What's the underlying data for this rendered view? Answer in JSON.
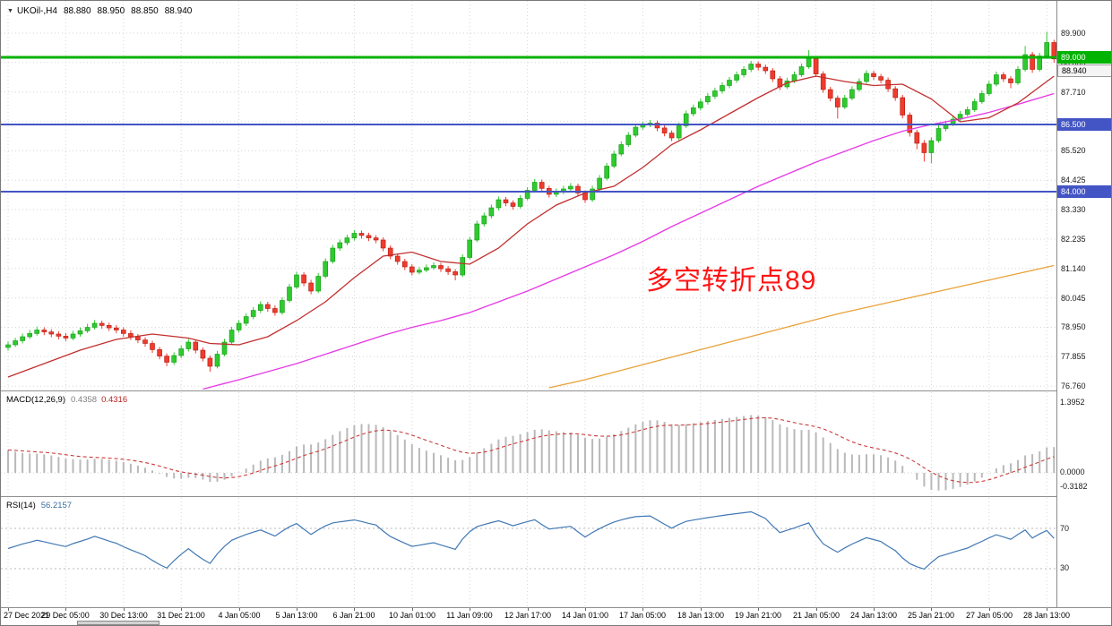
{
  "header": {
    "collapse_icon": "▼",
    "symbol": "UKOil-,H4",
    "open": "88.880",
    "high": "88.950",
    "low": "88.850",
    "close": "88.940"
  },
  "annotation": {
    "text": "多空转折点89",
    "color": "#ff1414"
  },
  "price_axis": {
    "labels": [
      "89.900",
      "88.805",
      "87.710",
      "86.615",
      "85.520",
      "84.425",
      "83.330",
      "82.235",
      "81.140",
      "80.045",
      "78.950",
      "77.855",
      "76.760"
    ],
    "bid": "88.940"
  },
  "date_axis": {
    "labels": [
      "27 Dec 2021",
      "29 Dec 05:00",
      "30 Dec 13:00",
      "31 Dec 21:00",
      "4 Jan 05:00",
      "5 Jan 13:00",
      "6 Jan 21:00",
      "10 Jan 01:00",
      "11 Jan 09:00",
      "12 Jan 17:00",
      "14 Jan 01:00",
      "17 Jan 05:00",
      "18 Jan 13:00",
      "19 Jan 21:00",
      "21 Jan 05:00",
      "24 Jan 13:00",
      "25 Jan 21:00",
      "27 Jan 05:00",
      "28 Jan 13:00"
    ]
  },
  "macd": {
    "label": "MACD(12,26,9)",
    "value1": "0.4358",
    "value2": "0.4316",
    "axis": [
      "1.3952",
      "0.0000",
      "-0.3182"
    ],
    "params": {
      "fast": 12,
      "slow": 26,
      "signal": 9
    }
  },
  "rsi": {
    "label": "RSI(14)",
    "value": "56.2157",
    "levels": [
      70,
      30
    ],
    "period": 14
  },
  "colors": {
    "grid": "#d6d6d6",
    "candle_up": "#2fca2f",
    "candle_up_border": "#119911",
    "candle_down": "#ef3c2e",
    "candle_down_border": "#b3170c",
    "ma_fast": "#c22f2f",
    "ma_mid": "#e63ce6",
    "ma_slow": "#e8a33b",
    "macd_hist": "#b9b9b9",
    "macd_signal": "#cc3b3b",
    "rsi_line": "#4178b4",
    "axis_text": "#1a1a1a"
  },
  "chart_data": {
    "type": "candlestick",
    "symbol": "UKOil-",
    "timeframe": "H4",
    "visible_price_range": [
      76.6,
      91.0
    ],
    "current_ohlc": {
      "open": 88.88,
      "high": 88.95,
      "low": 88.85,
      "close": 88.94
    },
    "hlines": [
      {
        "price": 89.0,
        "label": "89.000",
        "color": "#00b300",
        "width": 3
      },
      {
        "price": 86.5,
        "label": "86.500",
        "color": "#4355c4",
        "width": 2
      },
      {
        "price": 84.0,
        "label": "84.000",
        "color": "#4355c4",
        "width": 2
      }
    ],
    "bars": [
      [
        78.2,
        78.42,
        78.08,
        78.3
      ],
      [
        78.3,
        78.56,
        78.22,
        78.45
      ],
      [
        78.45,
        78.72,
        78.35,
        78.6
      ],
      [
        78.6,
        78.85,
        78.52,
        78.72
      ],
      [
        78.72,
        78.98,
        78.64,
        78.85
      ],
      [
        78.85,
        78.95,
        78.66,
        78.78
      ],
      [
        78.78,
        78.88,
        78.58,
        78.7
      ],
      [
        78.7,
        78.8,
        78.5,
        78.62
      ],
      [
        78.62,
        78.74,
        78.44,
        78.55
      ],
      [
        78.55,
        78.82,
        78.47,
        78.7
      ],
      [
        78.7,
        78.94,
        78.6,
        78.82
      ],
      [
        78.82,
        79.08,
        78.74,
        78.95
      ],
      [
        78.95,
        79.22,
        78.87,
        79.1
      ],
      [
        79.1,
        79.2,
        78.9,
        79.02
      ],
      [
        79.02,
        79.12,
        78.81,
        78.93
      ],
      [
        78.93,
        79.03,
        78.73,
        78.85
      ],
      [
        78.85,
        78.95,
        78.6,
        78.72
      ],
      [
        78.72,
        78.84,
        78.48,
        78.6
      ],
      [
        78.6,
        78.7,
        78.36,
        78.48
      ],
      [
        78.48,
        78.58,
        78.23,
        78.35
      ],
      [
        78.35,
        78.45,
        78.0,
        78.12
      ],
      [
        78.12,
        78.22,
        77.76,
        77.88
      ],
      [
        77.88,
        77.98,
        77.5,
        77.65
      ],
      [
        77.65,
        78.02,
        77.55,
        77.9
      ],
      [
        77.9,
        78.27,
        77.8,
        78.15
      ],
      [
        78.15,
        78.52,
        78.05,
        78.4
      ],
      [
        78.4,
        78.5,
        77.98,
        78.1
      ],
      [
        78.1,
        78.2,
        77.68,
        77.8
      ],
      [
        77.8,
        77.9,
        77.3,
        77.5
      ],
      [
        77.5,
        78.07,
        77.42,
        77.95
      ],
      [
        77.95,
        78.52,
        77.87,
        78.4
      ],
      [
        78.4,
        78.97,
        78.32,
        78.85
      ],
      [
        78.85,
        79.22,
        78.75,
        79.1
      ],
      [
        79.1,
        79.47,
        79.0,
        79.35
      ],
      [
        79.35,
        79.7,
        79.25,
        79.58
      ],
      [
        79.58,
        79.92,
        79.48,
        79.8
      ],
      [
        79.8,
        79.9,
        79.53,
        79.65
      ],
      [
        79.65,
        79.77,
        79.38,
        79.5
      ],
      [
        79.5,
        80.07,
        79.42,
        79.95
      ],
      [
        79.95,
        80.57,
        79.87,
        80.45
      ],
      [
        80.45,
        81.02,
        80.37,
        80.9
      ],
      [
        80.9,
        81.0,
        80.48,
        80.6
      ],
      [
        80.6,
        80.72,
        80.18,
        80.3
      ],
      [
        80.3,
        80.97,
        80.22,
        80.85
      ],
      [
        80.85,
        81.52,
        80.77,
        81.4
      ],
      [
        81.4,
        82.02,
        81.32,
        81.9
      ],
      [
        81.9,
        82.22,
        81.8,
        82.1
      ],
      [
        82.1,
        82.4,
        82.0,
        82.28
      ],
      [
        82.28,
        82.57,
        82.18,
        82.45
      ],
      [
        82.45,
        82.55,
        82.25,
        82.37
      ],
      [
        82.37,
        82.47,
        82.16,
        82.28
      ],
      [
        82.28,
        82.38,
        82.08,
        82.2
      ],
      [
        82.2,
        82.3,
        81.78,
        81.9
      ],
      [
        81.9,
        82.0,
        81.48,
        81.6
      ],
      [
        81.6,
        81.7,
        81.28,
        81.4
      ],
      [
        81.4,
        81.5,
        81.08,
        81.2
      ],
      [
        81.2,
        81.3,
        80.88,
        81.0
      ],
      [
        81.0,
        81.2,
        80.92,
        81.08
      ],
      [
        81.08,
        81.29,
        81.0,
        81.17
      ],
      [
        81.17,
        81.37,
        81.09,
        81.25
      ],
      [
        81.25,
        81.35,
        81.01,
        81.13
      ],
      [
        81.13,
        81.23,
        80.9,
        81.02
      ],
      [
        81.02,
        81.12,
        80.7,
        80.9
      ],
      [
        80.9,
        81.67,
        80.82,
        81.55
      ],
      [
        81.55,
        82.32,
        81.47,
        82.2
      ],
      [
        82.2,
        82.92,
        82.12,
        82.8
      ],
      [
        82.8,
        83.22,
        82.7,
        83.1
      ],
      [
        83.1,
        83.52,
        83.0,
        83.4
      ],
      [
        83.4,
        83.82,
        83.3,
        83.7
      ],
      [
        83.7,
        83.8,
        83.46,
        83.58
      ],
      [
        83.58,
        83.68,
        83.33,
        83.45
      ],
      [
        83.45,
        83.87,
        83.37,
        83.75
      ],
      [
        83.75,
        84.17,
        83.67,
        84.05
      ],
      [
        84.05,
        84.47,
        83.97,
        84.35
      ],
      [
        84.35,
        84.45,
        84.0,
        84.12
      ],
      [
        84.12,
        84.22,
        83.78,
        83.9
      ],
      [
        83.9,
        84.12,
        83.8,
        84.0
      ],
      [
        84.0,
        84.22,
        83.9,
        84.1
      ],
      [
        84.1,
        84.32,
        84.0,
        84.2
      ],
      [
        84.2,
        84.3,
        83.83,
        83.95
      ],
      [
        83.95,
        84.05,
        83.58,
        83.7
      ],
      [
        83.7,
        84.22,
        83.62,
        84.1
      ],
      [
        84.1,
        84.62,
        84.02,
        84.5
      ],
      [
        84.5,
        85.07,
        84.42,
        84.95
      ],
      [
        84.95,
        85.52,
        84.87,
        85.4
      ],
      [
        85.4,
        85.87,
        85.32,
        85.75
      ],
      [
        85.75,
        86.22,
        85.67,
        86.1
      ],
      [
        86.1,
        86.52,
        86.02,
        86.4
      ],
      [
        86.4,
        86.6,
        86.3,
        86.48
      ],
      [
        86.48,
        86.67,
        86.4,
        86.55
      ],
      [
        86.55,
        86.65,
        86.25,
        86.37
      ],
      [
        86.37,
        86.47,
        86.06,
        86.18
      ],
      [
        86.18,
        86.28,
        85.88,
        86.0
      ],
      [
        86.0,
        86.57,
        85.92,
        86.45
      ],
      [
        86.45,
        87.02,
        86.37,
        86.9
      ],
      [
        86.9,
        87.24,
        86.8,
        87.12
      ],
      [
        87.12,
        87.46,
        87.02,
        87.34
      ],
      [
        87.34,
        87.67,
        87.24,
        87.55
      ],
      [
        87.55,
        87.87,
        87.45,
        87.75
      ],
      [
        87.75,
        88.07,
        87.65,
        87.95
      ],
      [
        87.95,
        88.27,
        87.85,
        88.15
      ],
      [
        88.15,
        88.47,
        88.05,
        88.35
      ],
      [
        88.35,
        88.67,
        88.25,
        88.55
      ],
      [
        88.55,
        88.87,
        88.45,
        88.75
      ],
      [
        88.75,
        88.85,
        88.51,
        88.63
      ],
      [
        88.63,
        88.73,
        88.38,
        88.5
      ],
      [
        88.5,
        88.6,
        88.08,
        88.2
      ],
      [
        88.2,
        88.3,
        87.78,
        87.9
      ],
      [
        87.9,
        88.24,
        87.82,
        88.12
      ],
      [
        88.12,
        88.47,
        88.04,
        88.35
      ],
      [
        88.35,
        88.77,
        88.27,
        88.65
      ],
      [
        88.65,
        89.27,
        88.57,
        88.95
      ],
      [
        88.95,
        89.05,
        88.26,
        88.38
      ],
      [
        88.38,
        88.48,
        87.68,
        87.8
      ],
      [
        87.8,
        87.9,
        87.36,
        87.48
      ],
      [
        87.48,
        87.58,
        86.72,
        87.15
      ],
      [
        87.15,
        87.6,
        87.07,
        87.48
      ],
      [
        87.48,
        87.92,
        87.4,
        87.8
      ],
      [
        87.8,
        88.22,
        87.72,
        88.1
      ],
      [
        88.1,
        88.52,
        88.02,
        88.4
      ],
      [
        88.4,
        88.5,
        88.16,
        88.28
      ],
      [
        88.28,
        88.38,
        88.03,
        88.15
      ],
      [
        88.15,
        88.25,
        87.71,
        87.83
      ],
      [
        87.83,
        87.93,
        87.38,
        87.5
      ],
      [
        87.5,
        87.6,
        86.73,
        86.85
      ],
      [
        86.85,
        86.95,
        86.05,
        86.2
      ],
      [
        86.2,
        86.3,
        85.58,
        85.8
      ],
      [
        85.8,
        85.92,
        85.12,
        85.45
      ],
      [
        85.45,
        86.02,
        85.05,
        85.9
      ],
      [
        85.9,
        86.47,
        85.82,
        86.35
      ],
      [
        86.35,
        86.64,
        86.25,
        86.52
      ],
      [
        86.52,
        86.82,
        86.44,
        86.7
      ],
      [
        86.7,
        87.0,
        86.62,
        86.88
      ],
      [
        86.88,
        87.17,
        86.8,
        87.05
      ],
      [
        87.05,
        87.47,
        86.97,
        87.35
      ],
      [
        87.35,
        87.77,
        87.27,
        87.65
      ],
      [
        87.65,
        88.12,
        87.57,
        88.0
      ],
      [
        88.0,
        88.47,
        87.92,
        88.35
      ],
      [
        88.35,
        88.45,
        88.08,
        88.2
      ],
      [
        88.2,
        88.3,
        87.85,
        88.05
      ],
      [
        88.05,
        88.67,
        87.97,
        88.55
      ],
      [
        88.55,
        89.42,
        88.47,
        89.1
      ],
      [
        89.1,
        89.2,
        88.42,
        88.55
      ],
      [
        88.55,
        89.17,
        88.47,
        89.05
      ],
      [
        89.05,
        89.95,
        88.97,
        89.55
      ],
      [
        89.55,
        89.65,
        88.8,
        88.94
      ]
    ],
    "ma_red": [
      [
        0,
        77.1
      ],
      [
        5,
        77.6
      ],
      [
        10,
        78.1
      ],
      [
        15,
        78.5
      ],
      [
        20,
        78.7
      ],
      [
        25,
        78.55
      ],
      [
        28,
        78.35
      ],
      [
        32,
        78.3
      ],
      [
        36,
        78.6
      ],
      [
        40,
        79.2
      ],
      [
        44,
        79.9
      ],
      [
        48,
        80.8
      ],
      [
        52,
        81.6
      ],
      [
        56,
        81.75
      ],
      [
        60,
        81.4
      ],
      [
        64,
        81.3
      ],
      [
        68,
        81.9
      ],
      [
        72,
        82.8
      ],
      [
        76,
        83.5
      ],
      [
        80,
        83.95
      ],
      [
        84,
        84.2
      ],
      [
        88,
        84.9
      ],
      [
        92,
        85.75
      ],
      [
        96,
        86.3
      ],
      [
        100,
        86.9
      ],
      [
        104,
        87.5
      ],
      [
        108,
        88.05
      ],
      [
        112,
        88.3
      ],
      [
        116,
        88.1
      ],
      [
        120,
        87.95
      ],
      [
        124,
        88.0
      ],
      [
        128,
        87.45
      ],
      [
        132,
        86.6
      ],
      [
        136,
        86.75
      ],
      [
        140,
        87.3
      ],
      [
        143,
        87.9
      ],
      [
        145,
        88.3
      ]
    ],
    "ma_magenta": [
      [
        27,
        76.65
      ],
      [
        32,
        77.0
      ],
      [
        36,
        77.3
      ],
      [
        40,
        77.6
      ],
      [
        44,
        77.95
      ],
      [
        48,
        78.3
      ],
      [
        52,
        78.65
      ],
      [
        56,
        78.95
      ],
      [
        60,
        79.2
      ],
      [
        64,
        79.5
      ],
      [
        68,
        79.9
      ],
      [
        72,
        80.3
      ],
      [
        76,
        80.75
      ],
      [
        80,
        81.2
      ],
      [
        84,
        81.65
      ],
      [
        88,
        82.15
      ],
      [
        92,
        82.7
      ],
      [
        96,
        83.2
      ],
      [
        100,
        83.7
      ],
      [
        104,
        84.2
      ],
      [
        108,
        84.65
      ],
      [
        112,
        85.1
      ],
      [
        116,
        85.5
      ],
      [
        120,
        85.9
      ],
      [
        124,
        86.25
      ],
      [
        128,
        86.5
      ],
      [
        132,
        86.7
      ],
      [
        136,
        86.95
      ],
      [
        140,
        87.25
      ],
      [
        145,
        87.65
      ]
    ],
    "ma_orange": [
      [
        75,
        76.7
      ],
      [
        80,
        77.0
      ],
      [
        85,
        77.35
      ],
      [
        90,
        77.7
      ],
      [
        95,
        78.05
      ],
      [
        100,
        78.4
      ],
      [
        105,
        78.75
      ],
      [
        110,
        79.1
      ],
      [
        115,
        79.45
      ],
      [
        120,
        79.75
      ],
      [
        125,
        80.05
      ],
      [
        130,
        80.35
      ],
      [
        135,
        80.65
      ],
      [
        140,
        80.95
      ],
      [
        145,
        81.25
      ]
    ],
    "macd_axis_range": [
      -0.3182,
      1.3952
    ],
    "rsi_levels": [
      70,
      30
    ]
  }
}
